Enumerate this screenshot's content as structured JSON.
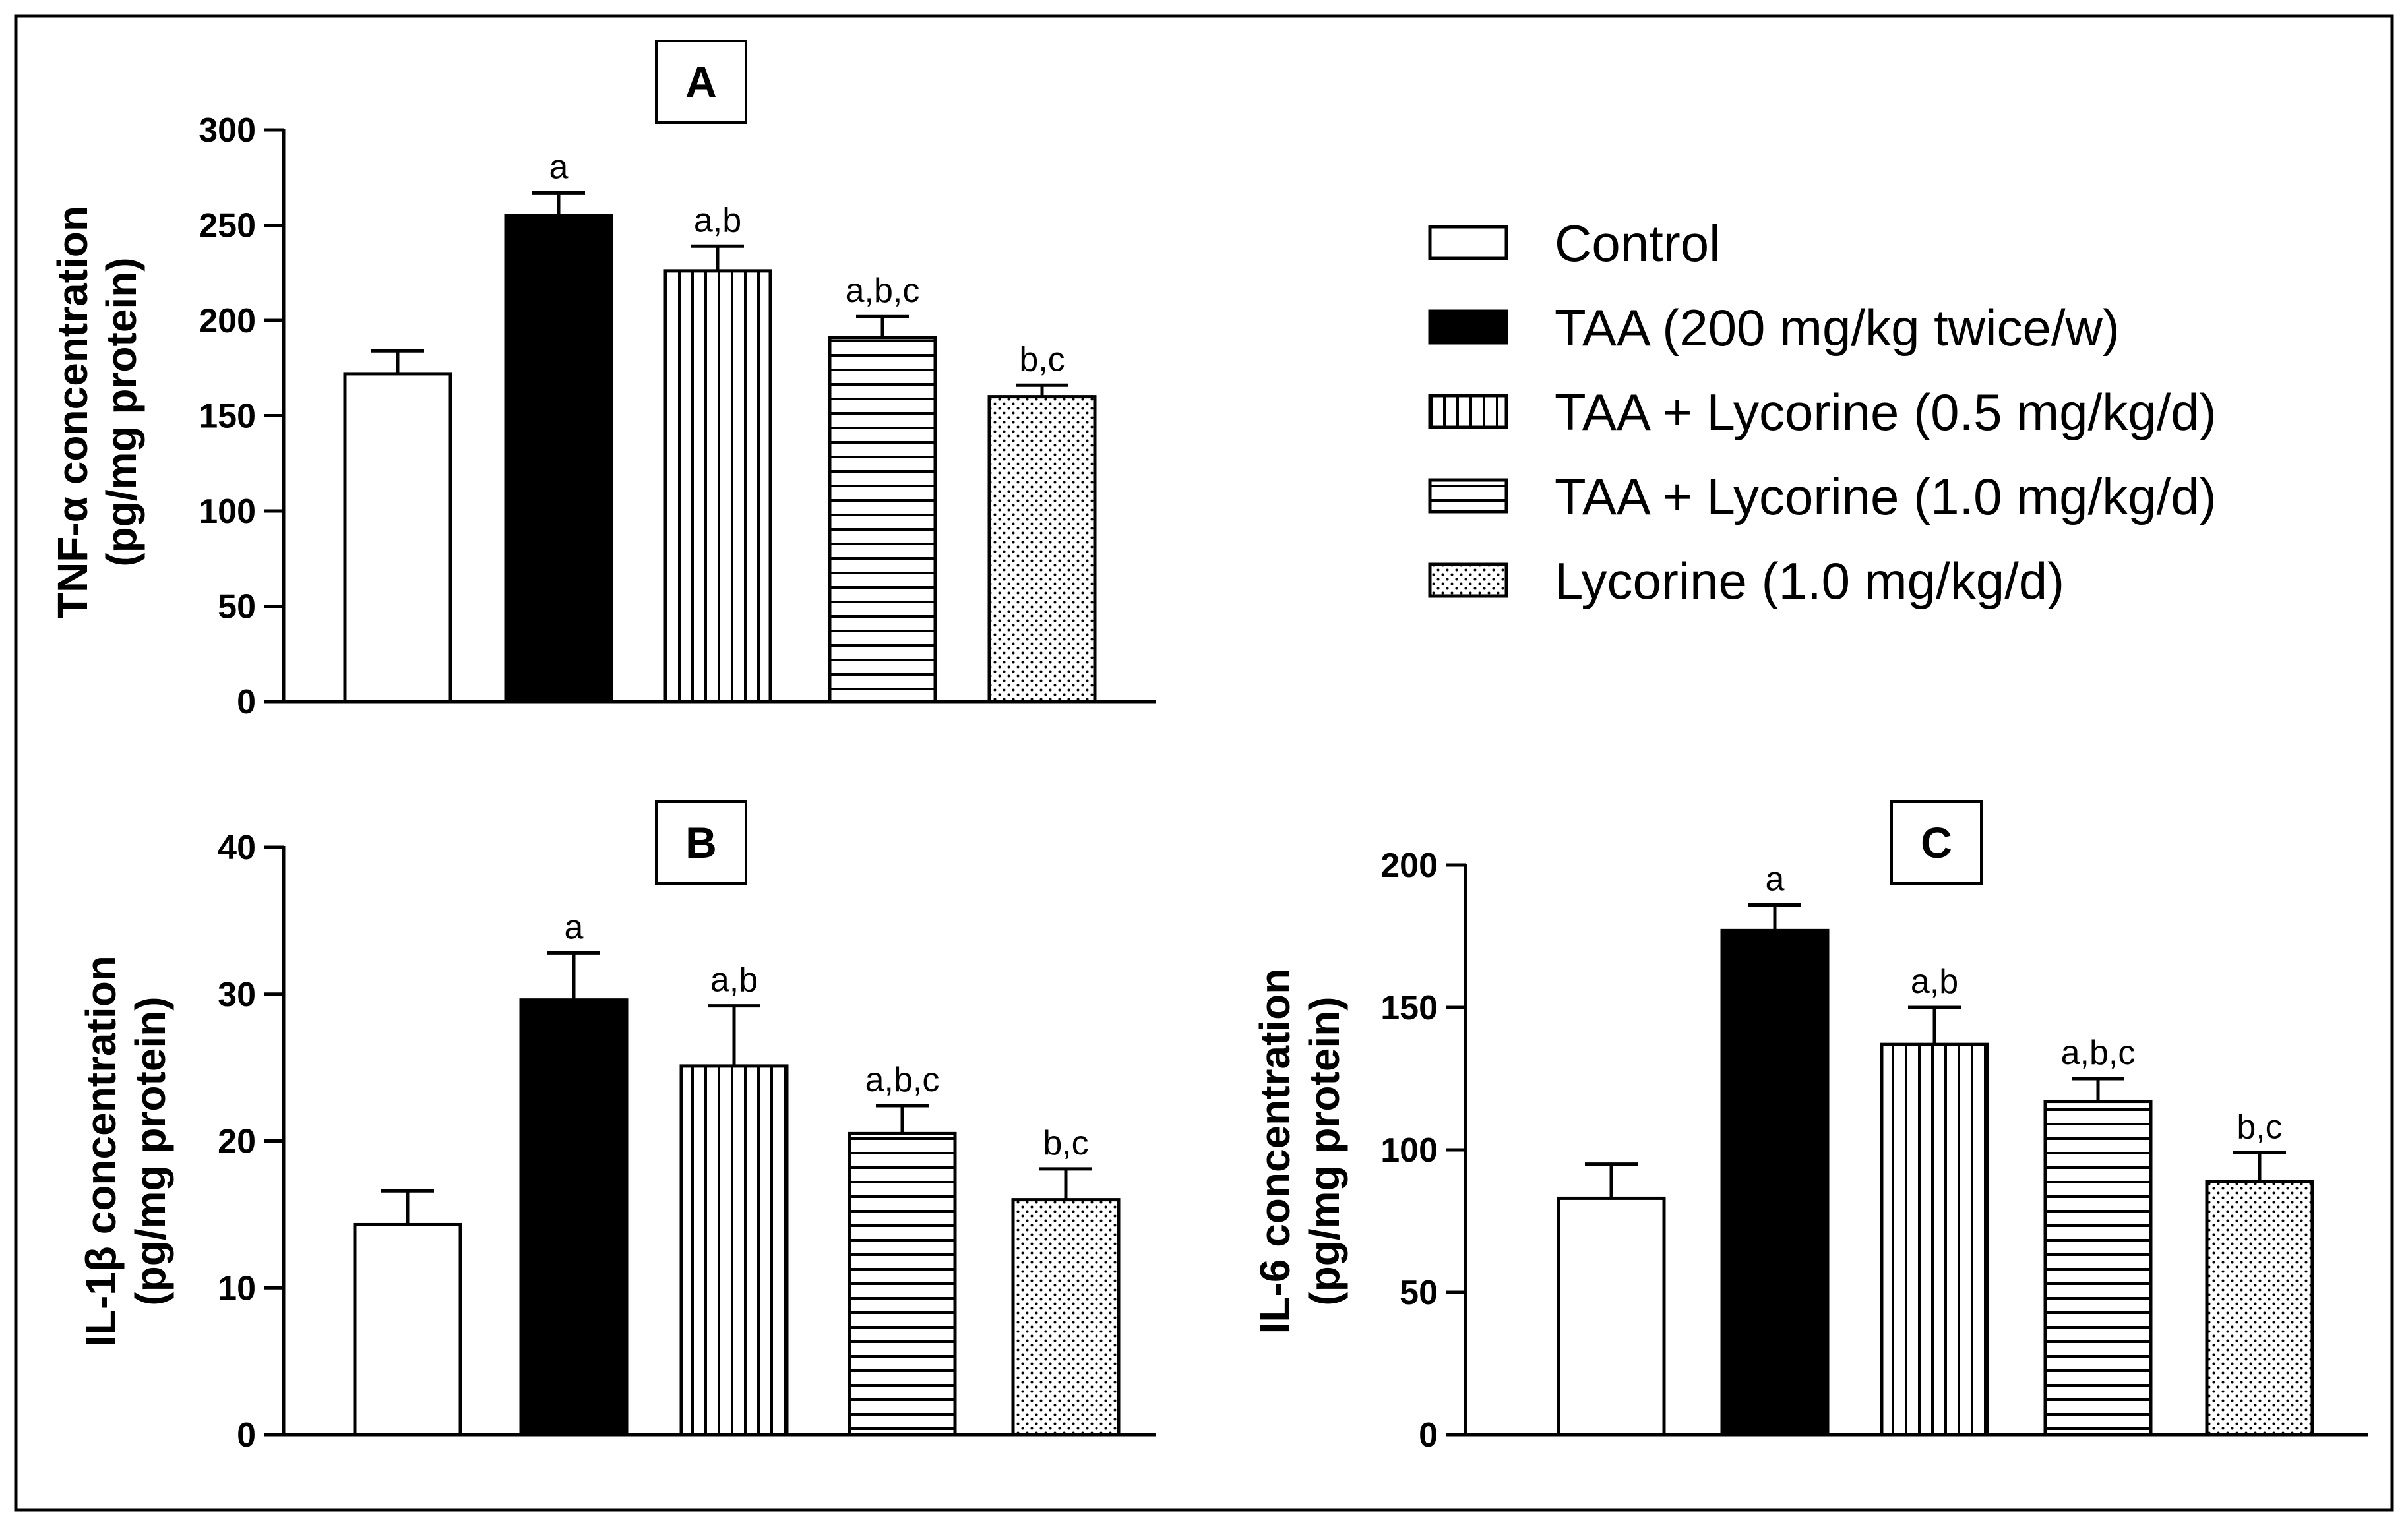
{
  "legend": [
    {
      "key": "control",
      "label": "Control",
      "fill": "white"
    },
    {
      "key": "taa",
      "label": "TAA (200 mg/kg twice/w)",
      "fill": "black"
    },
    {
      "key": "taa_lyc05",
      "label": "TAA + Lycorine (0.5 mg/kg/d)",
      "fill": "vlines"
    },
    {
      "key": "taa_lyc10",
      "label": "TAA + Lycorine (1.0 mg/kg/d)",
      "fill": "hlines"
    },
    {
      "key": "lyc10",
      "label": "Lycorine (1.0 mg/kg/d)",
      "fill": "dots"
    }
  ],
  "chart_data": [
    {
      "type": "bar",
      "panel": "A",
      "ylabel_line1": "TNF-α concentration",
      "ylabel_line2": "(pg/mg protein)",
      "ylim": [
        0,
        300
      ],
      "yticks": [
        0,
        50,
        100,
        150,
        200,
        250,
        300
      ],
      "categories": [
        "Control",
        "TAA (200 mg/kg twice/w)",
        "TAA + Lycorine (0.5 mg/kg/d)",
        "TAA + Lycorine (1.0 mg/kg/d)",
        "Lycorine (1.0 mg/kg/d)"
      ],
      "values": [
        172,
        255,
        226,
        191,
        160
      ],
      "errors": [
        12,
        12,
        13,
        11,
        6
      ],
      "significance": [
        "",
        "a",
        "a,b",
        "a,b,c",
        "b,c"
      ]
    },
    {
      "type": "bar",
      "panel": "B",
      "ylabel_line1": "IL-1β concentration",
      "ylabel_line2": "(pg/mg protein)",
      "ylim": [
        0,
        40
      ],
      "yticks": [
        0,
        10,
        20,
        30,
        40
      ],
      "categories": [
        "Control",
        "TAA (200 mg/kg twice/w)",
        "TAA + Lycorine (0.5 mg/kg/d)",
        "TAA + Lycorine (1.0 mg/kg/d)",
        "Lycorine (1.0 mg/kg/d)"
      ],
      "values": [
        14.3,
        29.6,
        25.1,
        20.5,
        16.0
      ],
      "errors": [
        2.3,
        3.2,
        4.1,
        1.9,
        2.1
      ],
      "significance": [
        "",
        "a",
        "a,b",
        "a,b,c",
        "b,c"
      ]
    },
    {
      "type": "bar",
      "panel": "C",
      "ylabel_line1": "IL-6 concentration",
      "ylabel_line2": "(pg/mg protein)",
      "ylim": [
        0,
        200
      ],
      "yticks": [
        0,
        50,
        100,
        150,
        200
      ],
      "categories": [
        "Control",
        "TAA (200 mg/kg twice/w)",
        "TAA + Lycorine (0.5 mg/kg/d)",
        "TAA + Lycorine (1.0 mg/kg/d)",
        "Lycorine (1.0 mg/kg/d)"
      ],
      "values": [
        83,
        177,
        137,
        117,
        89
      ],
      "errors": [
        12,
        9,
        13,
        8,
        10
      ],
      "significance": [
        "",
        "a",
        "a,b",
        "a,b,c",
        "b,c"
      ]
    }
  ]
}
